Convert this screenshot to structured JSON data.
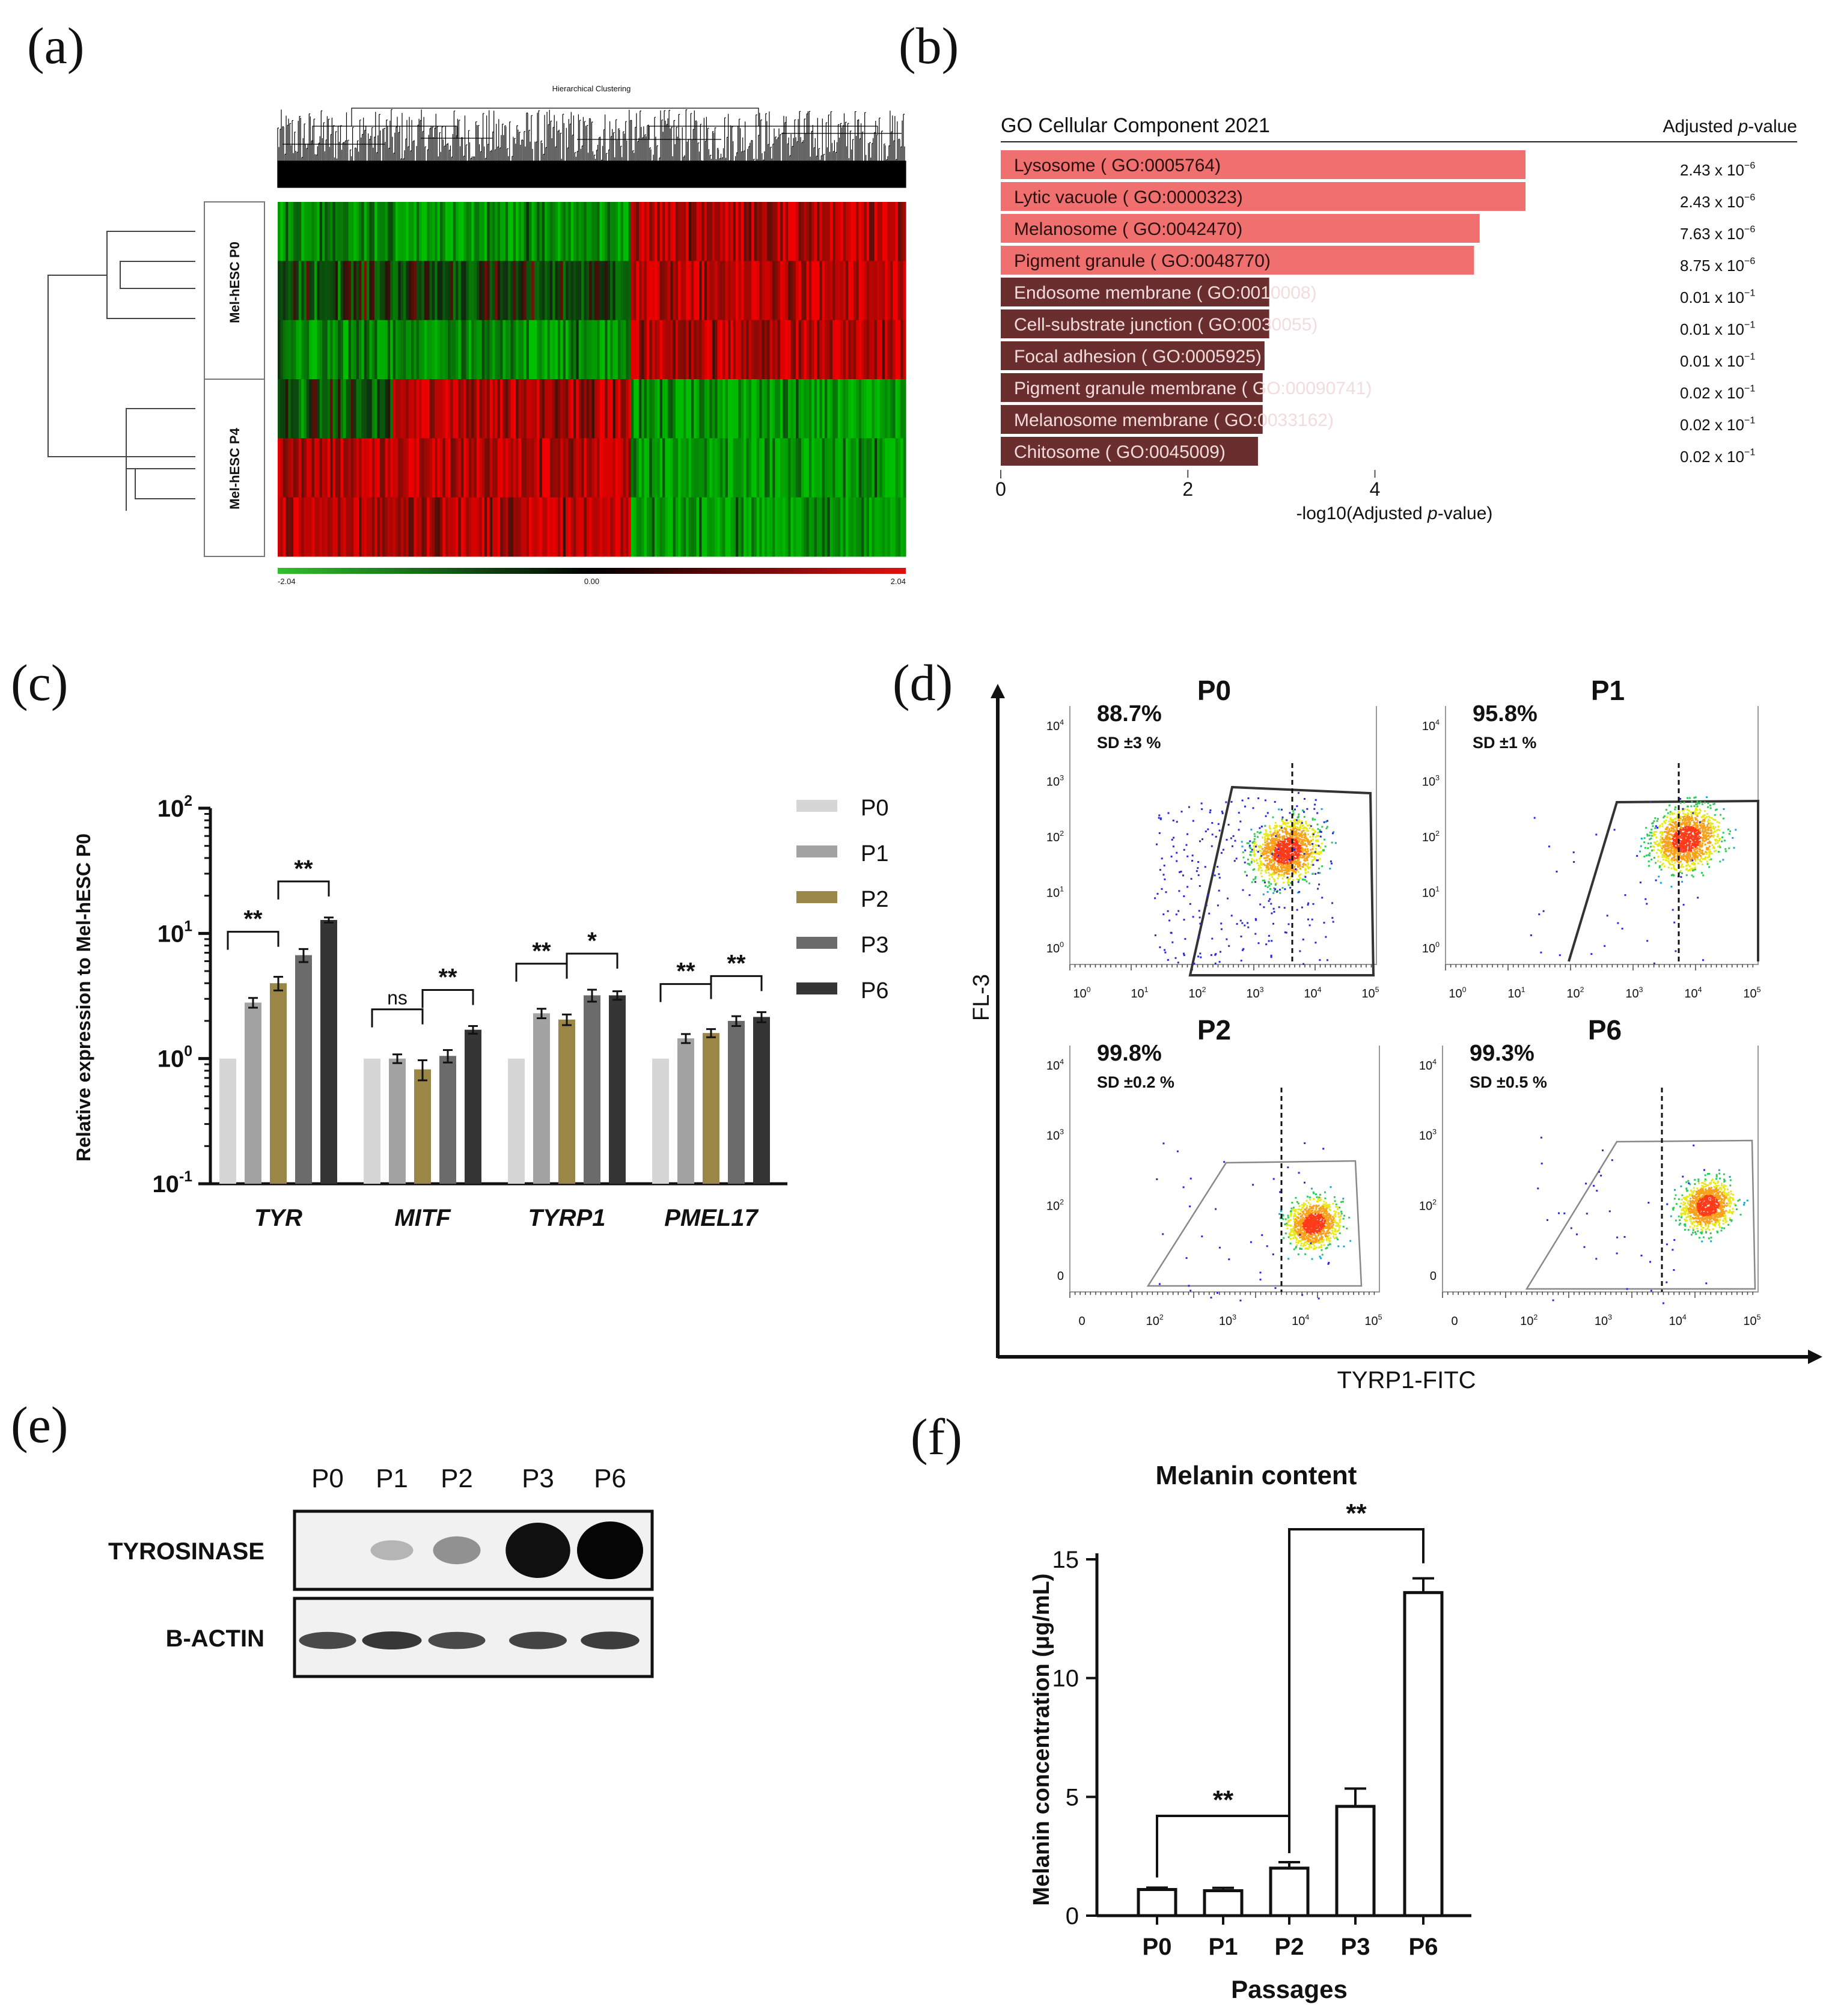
{
  "panels": {
    "a": "(a)",
    "b": "(b)",
    "c": "(c)",
    "d": "(d)",
    "e": "(e)",
    "f": "(f)"
  },
  "colors": {
    "p0": "#d6d6d6",
    "p1": "#a3a3a3",
    "p2": "#9a8748",
    "p3": "#6b6b6b",
    "p6": "#353535",
    "go_high": "#f07070",
    "go_low": "#6b2e2e",
    "heat_green": "#17a317",
    "heat_red": "#e01010"
  },
  "chart_data": [
    {
      "id": "a",
      "type": "heatmap",
      "title": "Hierarchical Clustering",
      "row_groups": [
        "Mel-hESC P0",
        "Mel-hESC P4"
      ],
      "rows_per_group": 3,
      "scale_min": "-2.04",
      "scale_mid": "0.00",
      "scale_max": "2.04"
    },
    {
      "id": "b",
      "type": "bar",
      "orientation": "horizontal",
      "title": "GO Cellular Component 2021",
      "right_header_prefix": "Adjusted ",
      "right_header_italic": "p",
      "right_header_suffix": "-value",
      "xlabel_prefix": "-log10(Adjusted ",
      "xlabel_italic": "p",
      "xlabel_suffix": "-value)",
      "xticks": [
        "0",
        "2",
        "4"
      ],
      "xlim": [
        0,
        5.68
      ],
      "categories": [
        "Lysosome ( GO:0005764)",
        "Lytic vacuole ( GO:0000323)",
        "Melanosome ( GO:0042470)",
        "Pigment granule ( GO:0048770)",
        "Endosome membrane ( GO:0010008)",
        "Cell-substrate junction ( GO:0030055)",
        "Focal adhesion ( GO:0005925)",
        "Pigment granule membrane ( GO:00090741)",
        "Melanosome membrane ( GO:0033162)",
        "Chitosome ( GO:0045009)"
      ],
      "values": [
        5.61,
        5.61,
        5.12,
        5.06,
        2.87,
        2.87,
        2.82,
        2.8,
        2.8,
        2.75
      ],
      "padj_mantissa": [
        "2.43 x 10",
        "2.43 x 10",
        "7.63 x 10",
        "8.75 x 10",
        "0.01 x 10",
        "0.01 x 10",
        "0.01 x 10",
        "0.02 x 10",
        "0.02 x 10",
        "0.02 x 10"
      ],
      "padj_exponent": [
        "−6",
        "−6",
        "−6",
        "−6",
        "−1",
        "−1",
        "−1",
        "−1",
        "−1",
        "−1"
      ]
    },
    {
      "id": "c",
      "type": "bar",
      "scale": "log10",
      "ylabel": "Relative expression to Mel-hESC P0",
      "yticks": [
        {
          "base": "10",
          "exp": "2"
        },
        {
          "base": "10",
          "exp": "1"
        },
        {
          "base": "10",
          "exp": "0"
        },
        {
          "base": "10",
          "exp": "-1"
        }
      ],
      "ylim": [
        0.1,
        100
      ],
      "categories": [
        "TYR",
        "MITF",
        "TYRP1",
        "PMEL17"
      ],
      "series": [
        {
          "name": "P0",
          "values": [
            1.0,
            1.0,
            1.0,
            1.0
          ],
          "errors": [
            0,
            0,
            0,
            0
          ]
        },
        {
          "name": "P1",
          "values": [
            2.8,
            1.0,
            2.3,
            1.45
          ],
          "errors": [
            0.25,
            0.08,
            0.2,
            0.12
          ]
        },
        {
          "name": "P2",
          "values": [
            4.0,
            0.82,
            2.05,
            1.6
          ],
          "errors": [
            0.5,
            0.15,
            0.2,
            0.12
          ]
        },
        {
          "name": "P3",
          "values": [
            6.7,
            1.05,
            3.2,
            2.0
          ],
          "errors": [
            0.8,
            0.12,
            0.35,
            0.18
          ]
        },
        {
          "name": "P6",
          "values": [
            12.8,
            1.7,
            3.2,
            2.15
          ],
          "errors": [
            0.6,
            0.12,
            0.25,
            0.2
          ]
        }
      ],
      "significance": [
        {
          "group": 0,
          "from": 0,
          "to": 2,
          "label": "**"
        },
        {
          "group": 0,
          "from": 2,
          "to": 4,
          "label": "**"
        },
        {
          "group": 1,
          "from": 0,
          "to": 2,
          "label": "ns"
        },
        {
          "group": 1,
          "from": 2,
          "to": 4,
          "label": "**"
        },
        {
          "group": 2,
          "from": 0,
          "to": 2,
          "label": "**"
        },
        {
          "group": 2,
          "from": 2,
          "to": 4,
          "label": "*"
        },
        {
          "group": 3,
          "from": 0,
          "to": 2,
          "label": "**"
        },
        {
          "group": 3,
          "from": 2,
          "to": 4,
          "label": "**"
        }
      ]
    },
    {
      "id": "d",
      "type": "scatter",
      "xlabel": "TYRP1-FITC",
      "ylabel": "FL-3",
      "plots": [
        {
          "label": "P0",
          "percent": "88.7%",
          "sd": "SD ±3 %",
          "gate": 0.887
        },
        {
          "label": "P1",
          "percent": "95.8%",
          "sd": "SD ±1 %",
          "gate": 0.958
        },
        {
          "label": "P2",
          "percent": "99.8%",
          "sd": "SD ±0.2 %",
          "gate": 0.998
        },
        {
          "label": "P6",
          "percent": "99.3%",
          "sd": "SD ±0.5 %",
          "gate": 0.993
        }
      ],
      "top_x_ticks": [
        [
          "10",
          "0"
        ],
        [
          "10",
          "1"
        ],
        [
          "10",
          "2"
        ],
        [
          "10",
          "3"
        ],
        [
          "10",
          "4"
        ],
        [
          "10",
          "5"
        ]
      ],
      "top_y_ticks": [
        [
          "10",
          "4"
        ],
        [
          "10",
          "3"
        ],
        [
          "10",
          "2"
        ],
        [
          "10",
          "1"
        ],
        [
          "10",
          "0"
        ]
      ],
      "bottom_x_ticks": [
        [
          "0",
          ""
        ],
        [
          "10",
          "2"
        ],
        [
          "10",
          "3"
        ],
        [
          "10",
          "4"
        ],
        [
          "10",
          "5"
        ]
      ],
      "bottom_y_ticks": [
        [
          "10",
          "4"
        ],
        [
          "10",
          "3"
        ],
        [
          "10",
          "2"
        ],
        [
          "0",
          ""
        ]
      ]
    },
    {
      "id": "e",
      "type": "western_blot",
      "lanes": [
        "P0",
        "P1",
        "P2",
        "P3",
        "P6"
      ],
      "rows": [
        {
          "label": "TYROSINASE",
          "intensity": [
            0.0,
            0.22,
            0.38,
            0.95,
            1.0
          ]
        },
        {
          "label": "B-ACTIN",
          "intensity": [
            0.7,
            0.78,
            0.7,
            0.72,
            0.75
          ]
        }
      ]
    },
    {
      "id": "f",
      "type": "bar",
      "title": "Melanin content",
      "xlabel": "Passages",
      "ylabel": "Melanin concentration (μg/mL)",
      "categories": [
        "P0",
        "P1",
        "P2",
        "P3",
        "P6"
      ],
      "values": [
        1.1,
        1.05,
        2.0,
        4.6,
        13.6
      ],
      "errors": [
        0.08,
        0.12,
        0.25,
        0.75,
        0.6
      ],
      "ylim": [
        0,
        15
      ],
      "yticks": [
        "0",
        "5",
        "10",
        "15"
      ],
      "significance": [
        {
          "from": 0,
          "to": 2,
          "label": "**"
        },
        {
          "from": 2,
          "to": 4,
          "label": "**"
        }
      ]
    }
  ]
}
